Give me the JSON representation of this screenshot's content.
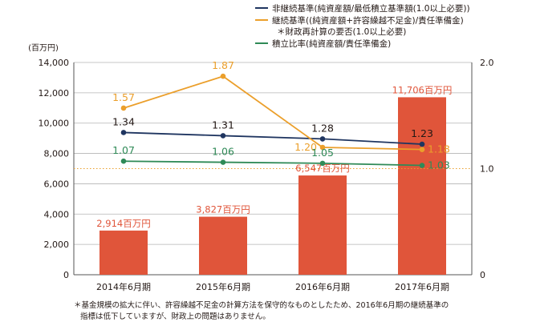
{
  "chart_data": {
    "type": "bar",
    "left_axis_unit": "(百万円)",
    "categories": [
      "2014年6月期",
      "2015年6月期",
      "2016年6月期",
      "2017年6月期"
    ],
    "ylim": [
      0,
      14000
    ],
    "y_ticks": [
      "0",
      "2,000",
      "4,000",
      "6,000",
      "8,000",
      "10,000",
      "12,000",
      "14,000"
    ],
    "y2lim": [
      0,
      2.0
    ],
    "y2_ticks": [
      "0",
      "1.0",
      "2.0"
    ],
    "reference_line_y2": 1.0,
    "bars": {
      "color": "#e0553a",
      "values": [
        2914,
        3827,
        6547,
        11706
      ],
      "labels": [
        "2,914百万円",
        "3,827百万円",
        "6,547百万円",
        "11,706百万円"
      ]
    },
    "series": [
      {
        "name": "非継続基準(純資産額/最低積立基準額(1.0以上必要))",
        "color": "#1f3560",
        "values": [
          1.34,
          1.31,
          1.28,
          1.23
        ],
        "labels": [
          "1.34",
          "1.31",
          "1.28",
          "1.23"
        ],
        "label_color": "#231815"
      },
      {
        "name": "継続基準((純資産額+許容繰越不足金)/責任準備金)",
        "name_line2": "＊財政再計算の要否(1.0以上必要)",
        "color": "#eb9f2b",
        "values": [
          1.57,
          1.87,
          1.2,
          1.18
        ],
        "labels": [
          "1.57",
          "1.87",
          "1.20",
          "1.18"
        ],
        "label_color": "#eb9f2b"
      },
      {
        "name": "積立比率(純資産額/責任準備金)",
        "color": "#2f8a57",
        "values": [
          1.07,
          1.06,
          1.05,
          1.03
        ],
        "labels": [
          "1.07",
          "1.06",
          "1.05",
          "1.03"
        ],
        "label_color": "#2f8a57"
      }
    ],
    "legend_position": "top-right",
    "grid": true
  },
  "footnote": {
    "line1": "＊基金規模の拡大に伴い、許容繰越不足金の計算方法を保守的なものとしたため、2016年6月期の継続基準の",
    "line2": "指標は低下していますが、財政上の問題はありません。"
  }
}
